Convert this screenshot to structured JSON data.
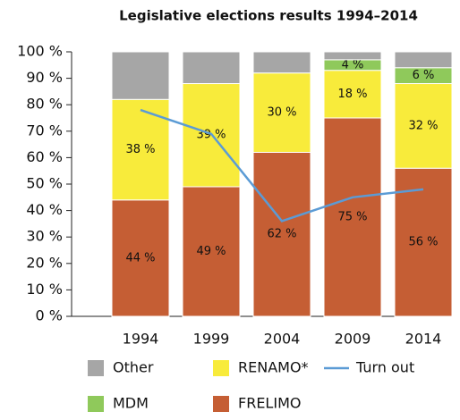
{
  "chart_data": {
    "type": "bar",
    "stacked": true,
    "title": "Legislative elections results 1994–2014",
    "categories": [
      "1994",
      "1999",
      "2004",
      "2009",
      "2014"
    ],
    "series": [
      {
        "name": "FRELIMO",
        "color": "#c55e34",
        "values": [
          44,
          49,
          62,
          75,
          56
        ],
        "value_labels": [
          "44 %",
          "49 %",
          "62 %",
          "75 %",
          "56 %"
        ]
      },
      {
        "name": "RENAMO*",
        "color": "#f8eb3b",
        "values": [
          38,
          39,
          30,
          18,
          32
        ],
        "value_labels": [
          "38 %",
          "39 %",
          "30 %",
          "18 %",
          "32 %"
        ]
      },
      {
        "name": "MDM",
        "color": "#8fc95b",
        "values": [
          null,
          null,
          null,
          4,
          6
        ],
        "value_labels": [
          null,
          null,
          null,
          "4 %",
          "6 %"
        ]
      },
      {
        "name": "Other",
        "color": "#a6a6a6",
        "values": [
          18,
          12,
          8,
          3,
          6
        ]
      },
      {
        "name": "Turn out",
        "type": "line",
        "color": "#5b9bd5",
        "values": [
          78,
          69,
          36,
          45,
          48
        ]
      }
    ],
    "ylim": [
      0,
      100
    ],
    "yticks": [
      {
        "value": 0,
        "label": "0 %"
      },
      {
        "value": 10,
        "label": "10 %"
      },
      {
        "value": 20,
        "label": "20 %"
      },
      {
        "value": 30,
        "label": "30 %"
      },
      {
        "value": 40,
        "label": "40 %"
      },
      {
        "value": 50,
        "label": "50 %"
      },
      {
        "value": 60,
        "label": "60 %"
      },
      {
        "value": 70,
        "label": "70 %"
      },
      {
        "value": 80,
        "label": "80 %"
      },
      {
        "value": 90,
        "label": "90 %"
      },
      {
        "value": 100,
        "label": "100 %"
      }
    ]
  }
}
